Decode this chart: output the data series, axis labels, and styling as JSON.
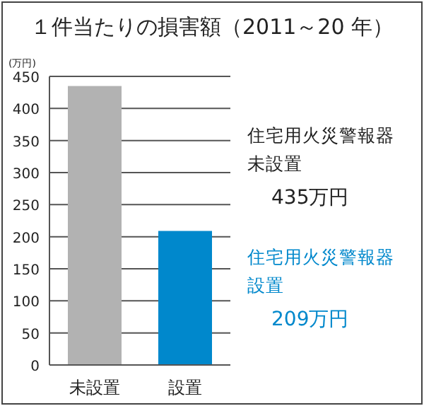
{
  "chart_data": {
    "type": "bar",
    "title": "１件当たりの損害額（2011～20 年）",
    "ylabel": "(万円)",
    "categories": [
      "未設置",
      "設置"
    ],
    "values": [
      435,
      209
    ],
    "colors": [
      "#b2b2b2",
      "#0088cc"
    ],
    "ylim": [
      0,
      450
    ],
    "yticks": [
      0,
      50,
      100,
      150,
      200,
      250,
      300,
      350,
      400,
      450
    ],
    "grid": "y",
    "annotations": [
      "住宅用火災警報器",
      "未設置",
      "435万円",
      "住宅用火災警報器",
      "設置",
      "209万円"
    ]
  }
}
